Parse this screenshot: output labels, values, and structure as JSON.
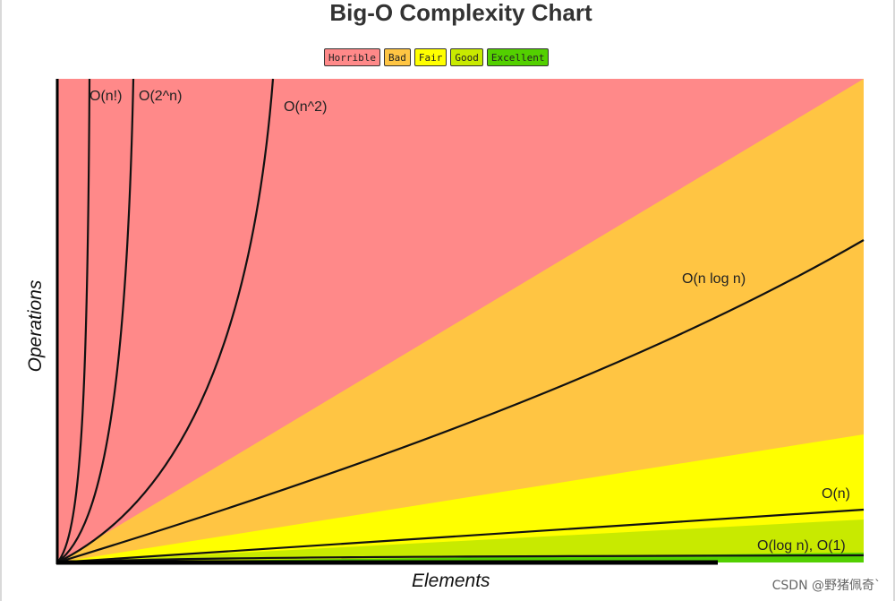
{
  "chart_data": {
    "type": "area",
    "title": "Big-O Complexity Chart",
    "xlabel": "Elements",
    "ylabel": "Operations",
    "legend": [
      {
        "label": "Horrible",
        "color": "#ff8989"
      },
      {
        "label": "Bad",
        "color": "#ffc543"
      },
      {
        "label": "Fair",
        "color": "#ffff00"
      },
      {
        "label": "Good",
        "color": "#c8ea00"
      },
      {
        "label": "Excellent",
        "color": "#53d000"
      }
    ],
    "legend_placement": "top-center",
    "grid": false,
    "series": [
      {
        "name": "O(n!)",
        "label": "O(n!)"
      },
      {
        "name": "O(2^n)",
        "label": "O(2^n)"
      },
      {
        "name": "O(n^2)",
        "label": "O(n^2)"
      },
      {
        "name": "O(n log n)",
        "label": "O(n log n)"
      },
      {
        "name": "O(n)",
        "label": "O(n)"
      },
      {
        "name": "O(log n), O(1)",
        "label": "O(log n), O(1)"
      }
    ]
  },
  "watermark": "CSDN @野猪佩奇`"
}
